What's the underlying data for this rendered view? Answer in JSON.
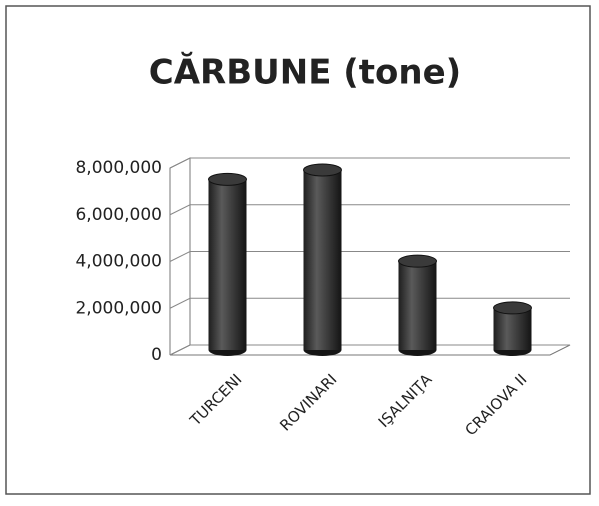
{
  "chart_data": {
    "type": "bar",
    "title": "CĂRBUNE (tone)",
    "categories": [
      "TURCENI",
      "ROVINARI",
      "IŞALNIŢA",
      "CRAIOVA II"
    ],
    "values": [
      7300000,
      7700000,
      3800000,
      1800000
    ],
    "color": "#3a3a3a",
    "ylim": [
      0,
      8000000
    ],
    "yticks": [
      0,
      {
        "value": 2000000,
        "label": "2,000,000"
      },
      {
        "value": 4000000,
        "label": "4,000,000"
      },
      {
        "value": 6000000,
        "label": "6,000,000"
      },
      {
        "value": 8000000,
        "label": "8,000,000"
      }
    ],
    "grid": true
  }
}
